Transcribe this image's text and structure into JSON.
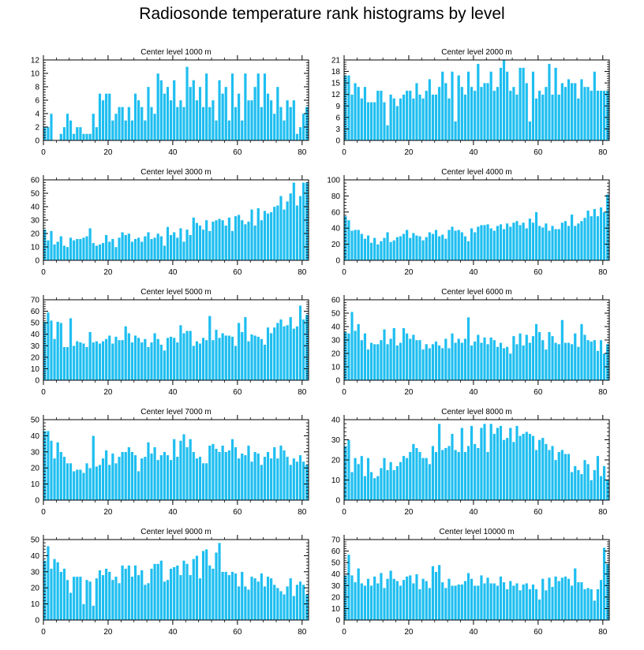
{
  "figure": {
    "title": "Radiosonde temperature rank histograms by level"
  },
  "style": {
    "bar_color": "#1ebef0",
    "bar_edge": "#ffffff",
    "axis_color": "#000000"
  },
  "chart_data": [
    {
      "type": "bar",
      "title": "Center level 1000 m",
      "xlabel": "",
      "ylabel": "",
      "xlim": [
        0,
        82
      ],
      "ylim": [
        0,
        12
      ],
      "yticks": [
        0,
        2,
        4,
        6,
        8,
        10,
        12
      ],
      "xticks": [
        0,
        20,
        40,
        60,
        80
      ],
      "x_start": 0,
      "values": [
        2,
        2,
        4,
        0,
        0,
        1,
        2,
        4,
        3,
        1,
        2,
        2,
        1,
        1,
        1,
        4,
        2,
        7,
        6,
        7,
        7,
        3,
        4,
        5,
        5,
        3,
        5,
        3,
        7,
        6,
        5,
        3,
        8,
        5,
        4,
        10,
        9,
        7,
        8,
        6,
        9,
        5,
        6,
        5,
        11,
        8,
        9,
        6,
        8,
        5,
        10,
        5,
        6,
        3,
        9,
        7,
        8,
        3,
        10,
        5,
        7,
        3,
        10,
        6,
        6,
        8,
        10,
        5,
        10,
        7,
        6,
        4,
        8,
        5,
        3,
        6,
        5,
        6,
        1,
        2,
        4,
        5
      ]
    },
    {
      "type": "bar",
      "title": "Center level 2000 m",
      "xlabel": "",
      "ylabel": "",
      "xlim": [
        0,
        82
      ],
      "ylim": [
        0,
        21
      ],
      "yticks": [
        0,
        3,
        6,
        9,
        12,
        15,
        18,
        21
      ],
      "xticks": [
        0,
        20,
        40,
        60,
        80
      ],
      "x_start": 0,
      "values": [
        17,
        17,
        12,
        15,
        14,
        11,
        14,
        10,
        10,
        10,
        13,
        13,
        10,
        4,
        12,
        11,
        9,
        11,
        12,
        13,
        13,
        11,
        15,
        12,
        11,
        13,
        16,
        12,
        12,
        14,
        18,
        15,
        11,
        18,
        5,
        17,
        14,
        12,
        18,
        14,
        13,
        20,
        14,
        15,
        15,
        18,
        13,
        14,
        19,
        21,
        18,
        13,
        14,
        12,
        19,
        19,
        15,
        5,
        18,
        11,
        13,
        12,
        14,
        20,
        12,
        19,
        12,
        15,
        14,
        16,
        15,
        15,
        11,
        16,
        14,
        14,
        13,
        18,
        13,
        13,
        13,
        13
      ]
    },
    {
      "type": "bar",
      "title": "Center level 3000 m",
      "xlabel": "",
      "ylabel": "",
      "xlim": [
        0,
        82
      ],
      "ylim": [
        0,
        60
      ],
      "yticks": [
        0,
        10,
        20,
        30,
        40,
        50,
        60
      ],
      "xticks": [
        0,
        20,
        40,
        60,
        80
      ],
      "x_start": 0,
      "values": [
        23,
        15,
        22,
        12,
        14,
        18,
        11,
        10,
        17,
        15,
        16,
        16,
        17,
        18,
        24,
        13,
        11,
        12,
        13,
        19,
        14,
        16,
        10,
        17,
        21,
        19,
        20,
        14,
        16,
        17,
        14,
        18,
        21,
        16,
        17,
        20,
        18,
        11,
        25,
        19,
        21,
        17,
        24,
        14,
        23,
        19,
        32,
        28,
        26,
        23,
        30,
        22,
        29,
        30,
        31,
        30,
        26,
        32,
        22,
        33,
        34,
        30,
        27,
        29,
        38,
        26,
        39,
        30,
        37,
        35,
        36,
        40,
        41,
        48,
        38,
        44,
        50,
        58,
        41,
        48,
        58,
        58
      ]
    },
    {
      "type": "bar",
      "title": "Center level 4000 m",
      "xlabel": "",
      "ylabel": "",
      "xlim": [
        0,
        82
      ],
      "ylim": [
        0,
        100
      ],
      "yticks": [
        0,
        20,
        40,
        60,
        80,
        100
      ],
      "xticks": [
        0,
        20,
        40,
        60,
        80
      ],
      "x_start": 0,
      "values": [
        55,
        50,
        37,
        38,
        38,
        33,
        27,
        31,
        22,
        28,
        20,
        24,
        28,
        35,
        23,
        25,
        29,
        30,
        33,
        38,
        28,
        34,
        31,
        30,
        25,
        29,
        35,
        33,
        38,
        30,
        32,
        27,
        38,
        42,
        37,
        38,
        35,
        30,
        24,
        40,
        35,
        42,
        44,
        44,
        45,
        40,
        37,
        43,
        45,
        39,
        46,
        42,
        47,
        49,
        44,
        47,
        40,
        52,
        47,
        60,
        43,
        41,
        46,
        37,
        43,
        39,
        39,
        47,
        49,
        43,
        57,
        43,
        46,
        49,
        53,
        62,
        55,
        64,
        55,
        66,
        60,
        82
      ]
    },
    {
      "type": "bar",
      "title": "Center level 5000 m",
      "xlabel": "",
      "ylabel": "",
      "xlim": [
        0,
        82
      ],
      "ylim": [
        0,
        70
      ],
      "yticks": [
        0,
        10,
        20,
        30,
        40,
        50,
        60,
        70
      ],
      "xticks": [
        0,
        20,
        40,
        60,
        80
      ],
      "x_start": 0,
      "values": [
        51,
        59,
        52,
        36,
        51,
        50,
        29,
        29,
        54,
        30,
        34,
        33,
        32,
        29,
        42,
        33,
        34,
        32,
        34,
        36,
        39,
        32,
        38,
        35,
        35,
        47,
        41,
        33,
        39,
        37,
        33,
        36,
        29,
        33,
        41,
        36,
        31,
        26,
        37,
        38,
        37,
        33,
        48,
        41,
        43,
        43,
        30,
        34,
        32,
        37,
        35,
        56,
        35,
        44,
        37,
        41,
        39,
        39,
        38,
        30,
        50,
        42,
        55,
        34,
        40,
        39,
        38,
        36,
        31,
        46,
        41,
        46,
        50,
        53,
        47,
        48,
        55,
        45,
        47,
        65,
        53,
        57
      ]
    },
    {
      "type": "bar",
      "title": "Center level 6000 m",
      "xlabel": "",
      "ylabel": "",
      "xlim": [
        0,
        82
      ],
      "ylim": [
        0,
        60
      ],
      "yticks": [
        0,
        10,
        20,
        30,
        40,
        50,
        60
      ],
      "xticks": [
        0,
        20,
        40,
        60,
        80
      ],
      "x_start": 0,
      "values": [
        36,
        35,
        51,
        37,
        42,
        30,
        35,
        23,
        28,
        27,
        27,
        30,
        38,
        27,
        31,
        39,
        26,
        28,
        39,
        35,
        31,
        34,
        30,
        30,
        23,
        27,
        24,
        27,
        29,
        26,
        24,
        31,
        24,
        35,
        28,
        31,
        28,
        31,
        47,
        26,
        29,
        34,
        28,
        32,
        27,
        32,
        30,
        25,
        28,
        24,
        25,
        20,
        33,
        27,
        35,
        26,
        34,
        28,
        33,
        42,
        36,
        30,
        23,
        36,
        33,
        28,
        27,
        45,
        28,
        28,
        27,
        35,
        25,
        42,
        34,
        30,
        29,
        30,
        22,
        30,
        20,
        27
      ]
    },
    {
      "type": "bar",
      "title": "Center level 7000 m",
      "xlabel": "",
      "ylabel": "",
      "xlim": [
        0,
        82
      ],
      "ylim": [
        0,
        50
      ],
      "yticks": [
        0,
        10,
        20,
        30,
        40,
        50
      ],
      "xticks": [
        0,
        20,
        40,
        60,
        80
      ],
      "x_start": 0,
      "values": [
        43,
        43,
        37,
        26,
        36,
        30,
        27,
        23,
        23,
        18,
        19,
        19,
        17,
        23,
        20,
        40,
        21,
        22,
        26,
        31,
        22,
        29,
        23,
        27,
        30,
        30,
        33,
        30,
        28,
        18,
        26,
        27,
        36,
        29,
        33,
        25,
        28,
        30,
        28,
        25,
        38,
        27,
        37,
        41,
        33,
        38,
        30,
        26,
        27,
        23,
        23,
        34,
        35,
        32,
        30,
        34,
        30,
        31,
        38,
        33,
        26,
        29,
        28,
        34,
        24,
        30,
        29,
        22,
        27,
        30,
        26,
        33,
        26,
        34,
        31,
        27,
        22,
        26,
        24,
        28,
        24,
        22
      ]
    },
    {
      "type": "bar",
      "title": "Center level 8000 m",
      "xlabel": "",
      "ylabel": "",
      "xlim": [
        0,
        82
      ],
      "ylim": [
        0,
        40
      ],
      "yticks": [
        0,
        10,
        20,
        30,
        40
      ],
      "xticks": [
        0,
        20,
        40,
        60,
        80
      ],
      "x_start": 0,
      "values": [
        27,
        30,
        14,
        21,
        18,
        22,
        12,
        21,
        14,
        11,
        12,
        16,
        21,
        15,
        19,
        15,
        17,
        19,
        22,
        21,
        24,
        28,
        26,
        24,
        21,
        21,
        18,
        27,
        24,
        38,
        25,
        26,
        27,
        33,
        25,
        24,
        36,
        24,
        27,
        37,
        28,
        26,
        36,
        38,
        24,
        38,
        33,
        36,
        37,
        30,
        31,
        36,
        29,
        37,
        32,
        33,
        34,
        33,
        32,
        25,
        30,
        31,
        28,
        25,
        27,
        20,
        24,
        25,
        23,
        23,
        14,
        17,
        15,
        13,
        20,
        18,
        10,
        15,
        22,
        12,
        17,
        10
      ]
    },
    {
      "type": "bar",
      "title": "Center level 9000 m",
      "xlabel": "",
      "ylabel": "",
      "xlim": [
        0,
        82
      ],
      "ylim": [
        0,
        50
      ],
      "yticks": [
        0,
        10,
        20,
        30,
        40,
        50
      ],
      "xticks": [
        0,
        20,
        40,
        60,
        80
      ],
      "x_start": 0,
      "values": [
        37,
        46,
        32,
        38,
        36,
        30,
        32,
        25,
        17,
        27,
        27,
        27,
        10,
        25,
        24,
        9,
        26,
        31,
        28,
        32,
        30,
        25,
        27,
        23,
        34,
        32,
        34,
        27,
        34,
        28,
        31,
        22,
        23,
        32,
        35,
        35,
        37,
        24,
        25,
        32,
        33,
        34,
        28,
        37,
        35,
        28,
        38,
        40,
        26,
        43,
        44,
        34,
        32,
        42,
        48,
        30,
        30,
        28,
        30,
        29,
        21,
        30,
        21,
        19,
        27,
        26,
        24,
        29,
        21,
        27,
        26,
        22,
        20,
        18,
        16,
        21,
        26,
        15,
        22,
        24,
        22,
        16
      ]
    },
    {
      "type": "bar",
      "title": "Center level 10000 m",
      "xlabel": "",
      "ylabel": "",
      "xlim": [
        0,
        82
      ],
      "ylim": [
        0,
        70
      ],
      "yticks": [
        0,
        10,
        20,
        30,
        40,
        50,
        60,
        70
      ],
      "xticks": [
        0,
        20,
        40,
        60,
        80
      ],
      "x_start": 0,
      "values": [
        39,
        57,
        39,
        33,
        45,
        32,
        30,
        36,
        30,
        38,
        32,
        41,
        28,
        36,
        43,
        36,
        34,
        30,
        35,
        38,
        39,
        32,
        40,
        27,
        36,
        34,
        28,
        47,
        42,
        48,
        33,
        28,
        36,
        30,
        30,
        31,
        31,
        34,
        41,
        36,
        30,
        30,
        39,
        32,
        37,
        32,
        32,
        30,
        38,
        33,
        27,
        34,
        30,
        32,
        26,
        31,
        32,
        27,
        31,
        27,
        18,
        36,
        26,
        37,
        29,
        38,
        34,
        37,
        38,
        36,
        30,
        45,
        33,
        33,
        27,
        28,
        27,
        17,
        27,
        35,
        63,
        49
      ]
    }
  ]
}
